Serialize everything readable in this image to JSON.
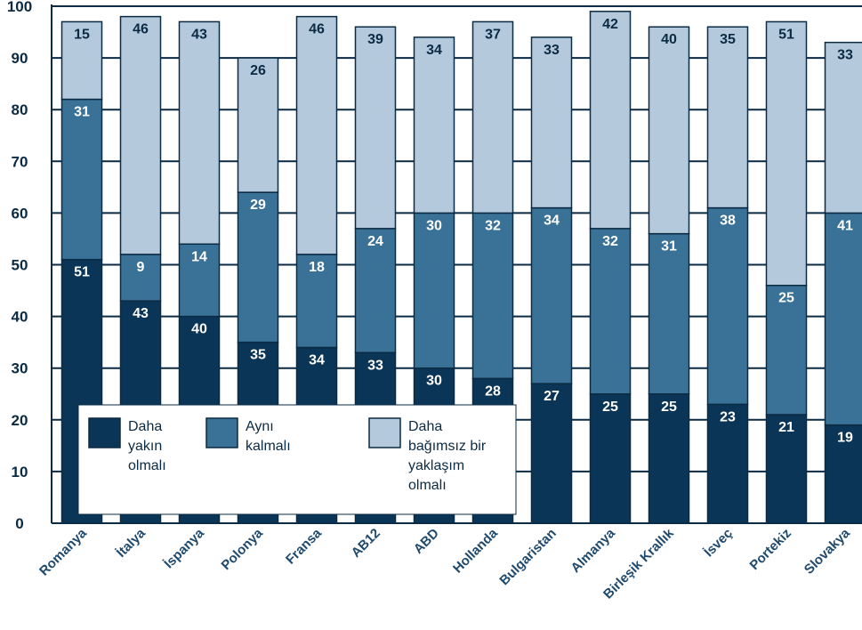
{
  "chart_data": {
    "type": "bar",
    "stacked": true,
    "title": "",
    "xlabel": "",
    "ylabel": "",
    "ylim": [
      0,
      100
    ],
    "yticks": [
      0,
      10,
      20,
      30,
      40,
      50,
      60,
      70,
      80,
      90,
      100
    ],
    "grid": true,
    "legend_position": "bottom-left (inside)",
    "categories": [
      "Romanya",
      "İtalya",
      "İspanya",
      "Polonya",
      "Fransa",
      "AB12",
      "ABD",
      "Hollanda",
      "Bulgaristan",
      "Almanya",
      "Birleşik Krallık",
      "İsveç",
      "Portekiz",
      "Slovakya"
    ],
    "series": [
      {
        "name": "Daha yakın olmalı",
        "legend_lines": [
          "Daha",
          "yakın",
          "olmalı"
        ],
        "color": "#0b3556",
        "label_color": "#ffffff",
        "values": [
          51,
          43,
          40,
          35,
          34,
          33,
          30,
          28,
          27,
          25,
          25,
          23,
          21,
          19
        ]
      },
      {
        "name": "Aynı kalmalı",
        "legend_lines": [
          "Aynı",
          "kalmalı"
        ],
        "color": "#3a7297",
        "label_color": "#ffffff",
        "values": [
          31,
          9,
          14,
          29,
          18,
          24,
          30,
          32,
          34,
          32,
          31,
          38,
          25,
          41
        ]
      },
      {
        "name": "Daha bağımsız bir yaklaşım olmalı",
        "legend_lines": [
          "Daha",
          "bağımsız bir",
          "yaklaşım",
          "olmalı"
        ],
        "color": "#b4c9dc",
        "label_color": "#0b2a43",
        "values": [
          15,
          46,
          43,
          26,
          46,
          39,
          34,
          37,
          33,
          42,
          40,
          35,
          51,
          33
        ]
      }
    ]
  }
}
